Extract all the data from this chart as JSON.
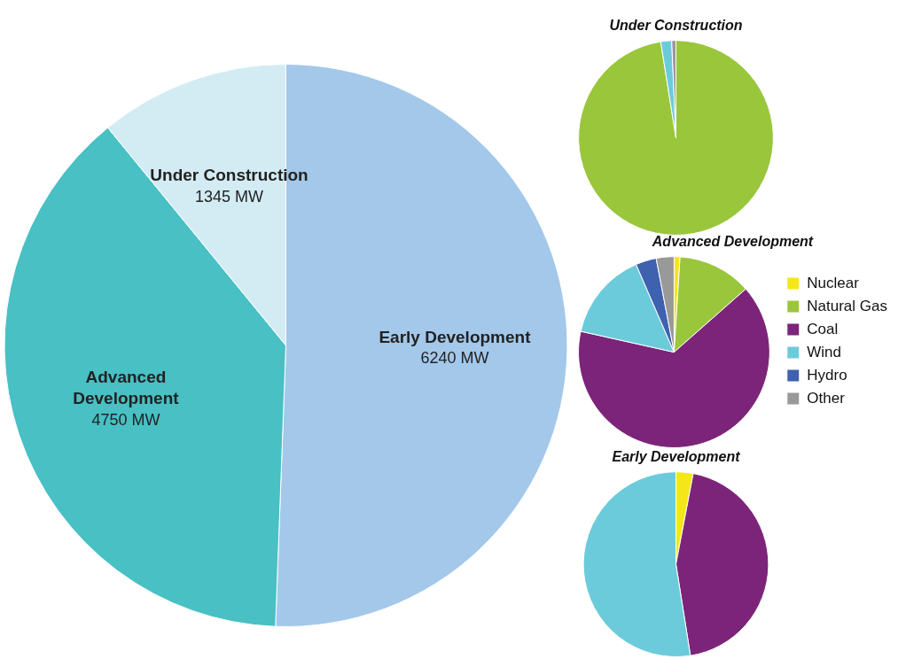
{
  "chart_data": [
    {
      "type": "pie",
      "categories": [
        "Early Development",
        "Advanced Development",
        "Under Construction"
      ],
      "values": [
        6240,
        4750,
        1345
      ],
      "colors": [
        "#a3c8ea",
        "#48c0c4",
        "#d3ecf3"
      ],
      "value_labels": [
        "6240 MW",
        "4750 MW",
        "1345 MW"
      ],
      "legend": false
    },
    {
      "type": "pie",
      "title": "Under Construction",
      "categories": [
        null,
        null,
        null
      ],
      "values": [
        97.5,
        1.8,
        0.7
      ],
      "colors": [
        "#9ac63c",
        "#6ccbdb",
        "#999999"
      ],
      "legend": false
    },
    {
      "type": "pie",
      "title": "Advanced Development",
      "categories": [
        "Nuclear",
        "Natural Gas",
        "Coal",
        "Wind",
        "Hydro",
        "Other"
      ],
      "values": [
        1,
        12.5,
        65,
        15,
        3.5,
        3
      ],
      "colors": [
        "#f5e61a",
        "#9ac63c",
        "#7b2479",
        "#6ccbdb",
        "#3e61b0",
        "#999999"
      ],
      "legend": "right"
    },
    {
      "type": "pie",
      "title": "Early Development",
      "categories": [
        null,
        null,
        null
      ],
      "values": [
        3,
        44.5,
        52.5
      ],
      "colors": [
        "#f5e61a",
        "#7b2479",
        "#6ccbdb"
      ],
      "legend": false
    }
  ]
}
